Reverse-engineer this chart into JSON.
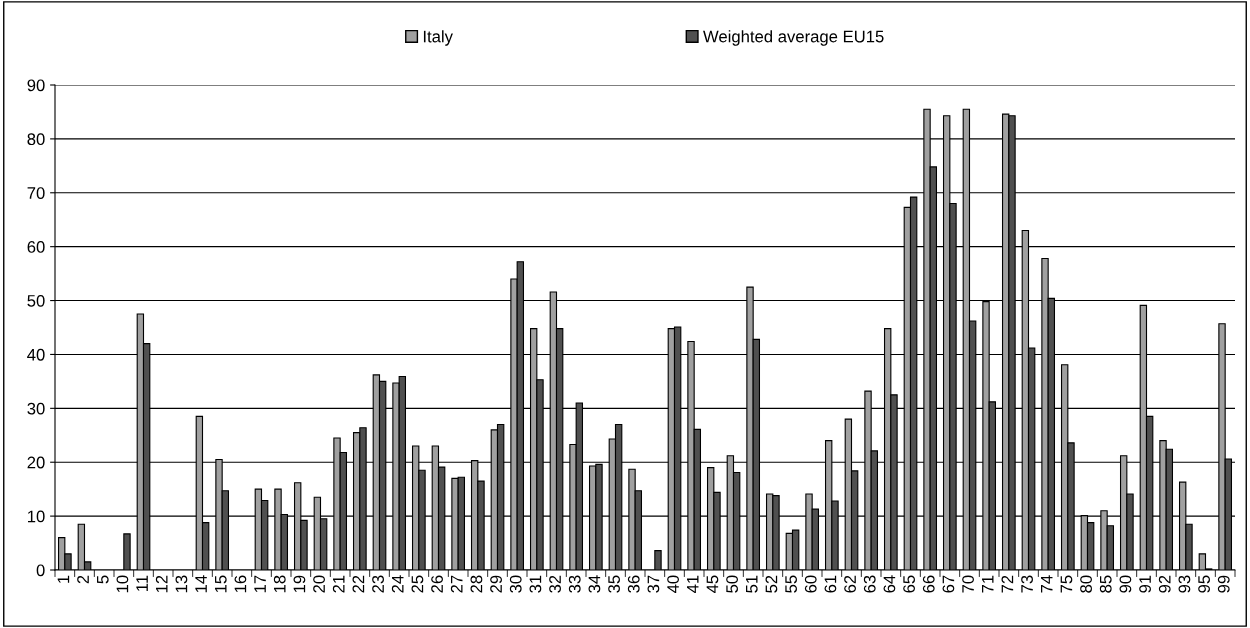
{
  "chart_data": {
    "type": "bar",
    "categories": [
      "1",
      "2",
      "5",
      "10",
      "11",
      "12",
      "13",
      "14",
      "15",
      "16",
      "17",
      "18",
      "19",
      "20",
      "21",
      "22",
      "23",
      "24",
      "25",
      "26",
      "27",
      "28",
      "29",
      "30",
      "31",
      "32",
      "33",
      "34",
      "35",
      "36",
      "37",
      "40",
      "41",
      "45",
      "50",
      "51",
      "52",
      "55",
      "60",
      "61",
      "62",
      "63",
      "64",
      "65",
      "66",
      "67",
      "70",
      "71",
      "72",
      "73",
      "74",
      "75",
      "80",
      "85",
      "90",
      "91",
      "92",
      "93",
      "95",
      "99"
    ],
    "series": [
      {
        "name": "Italy",
        "color": "#a0a0a0",
        "values": [
          6,
          8.5,
          null,
          null,
          47.5,
          null,
          null,
          28.5,
          20.5,
          null,
          15,
          15,
          16.2,
          13.5,
          24.5,
          25.5,
          36.2,
          34.7,
          23,
          23,
          17,
          20.3,
          26,
          54,
          44.8,
          51.6,
          23.3,
          19.3,
          24.3,
          18.7,
          null,
          44.8,
          42.4,
          19,
          21.2,
          52.5,
          14.1,
          6.8,
          14.1,
          24,
          28,
          33.2,
          44.8,
          67.3,
          85.5,
          84.3,
          85.5,
          49.8,
          84.6,
          63,
          57.8,
          38.1,
          10.1,
          11,
          21.2,
          49.1,
          24,
          16.3,
          3,
          45.7
        ]
      },
      {
        "name": "Weighted average EU15",
        "color": "#505050",
        "values": [
          3,
          1.5,
          null,
          6.7,
          42,
          null,
          null,
          8.8,
          14.7,
          null,
          12.9,
          10.3,
          9.2,
          9.5,
          21.8,
          26.4,
          35,
          35.9,
          18.5,
          19.1,
          17.2,
          16.5,
          27,
          57.2,
          35.3,
          44.8,
          31,
          19.6,
          27,
          14.7,
          3.6,
          45.1,
          26.1,
          14.4,
          18.1,
          42.8,
          13.8,
          7.4,
          11.3,
          12.8,
          18.4,
          22.1,
          32.5,
          69.2,
          74.8,
          68,
          46.2,
          31.2,
          84.3,
          41.2,
          50.4,
          23.6,
          8.8,
          8.2,
          14.1,
          28.5,
          22.4,
          8.5,
          0.2,
          20.6
        ]
      }
    ],
    "ylim": [
      0,
      90
    ],
    "yticks": [
      0,
      10,
      20,
      30,
      40,
      50,
      60,
      70,
      80,
      90
    ],
    "grid": "y",
    "legend": "top"
  }
}
